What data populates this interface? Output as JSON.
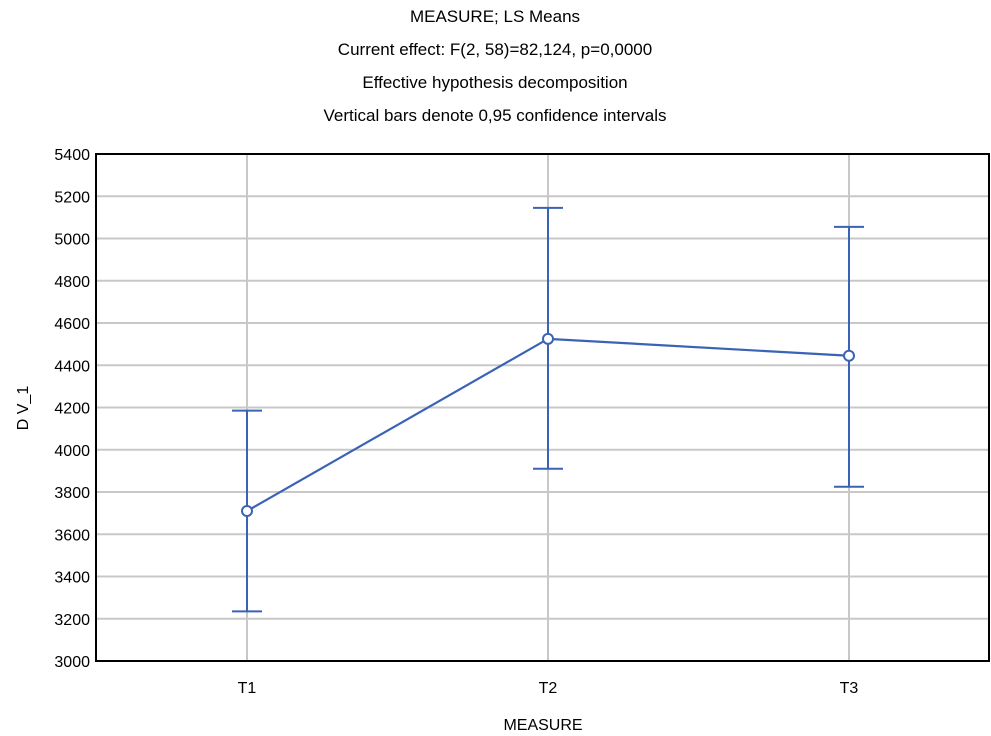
{
  "chart_data": {
    "type": "line",
    "title_lines": [
      "MEASURE; LS Means",
      "Current effect: F(2, 58)=82,124, p=0,0000",
      "Effective hypothesis decomposition",
      "Vertical bars denote 0,95 confidence intervals"
    ],
    "xlabel": "MEASURE",
    "ylabel": "D V_1",
    "categories": [
      "T1",
      "T2",
      "T3"
    ],
    "series": [
      {
        "values": [
          3710,
          4525,
          4445
        ],
        "ci_lower": [
          3235,
          3910,
          3825
        ],
        "ci_upper": [
          4185,
          5145,
          5055
        ]
      }
    ],
    "ylim": [
      3000,
      5400
    ],
    "yticks": [
      3000,
      3200,
      3400,
      3600,
      3800,
      4000,
      4200,
      4400,
      4600,
      4800,
      5000,
      5200,
      5400
    ],
    "grid": true,
    "color": "#3a62b5"
  }
}
